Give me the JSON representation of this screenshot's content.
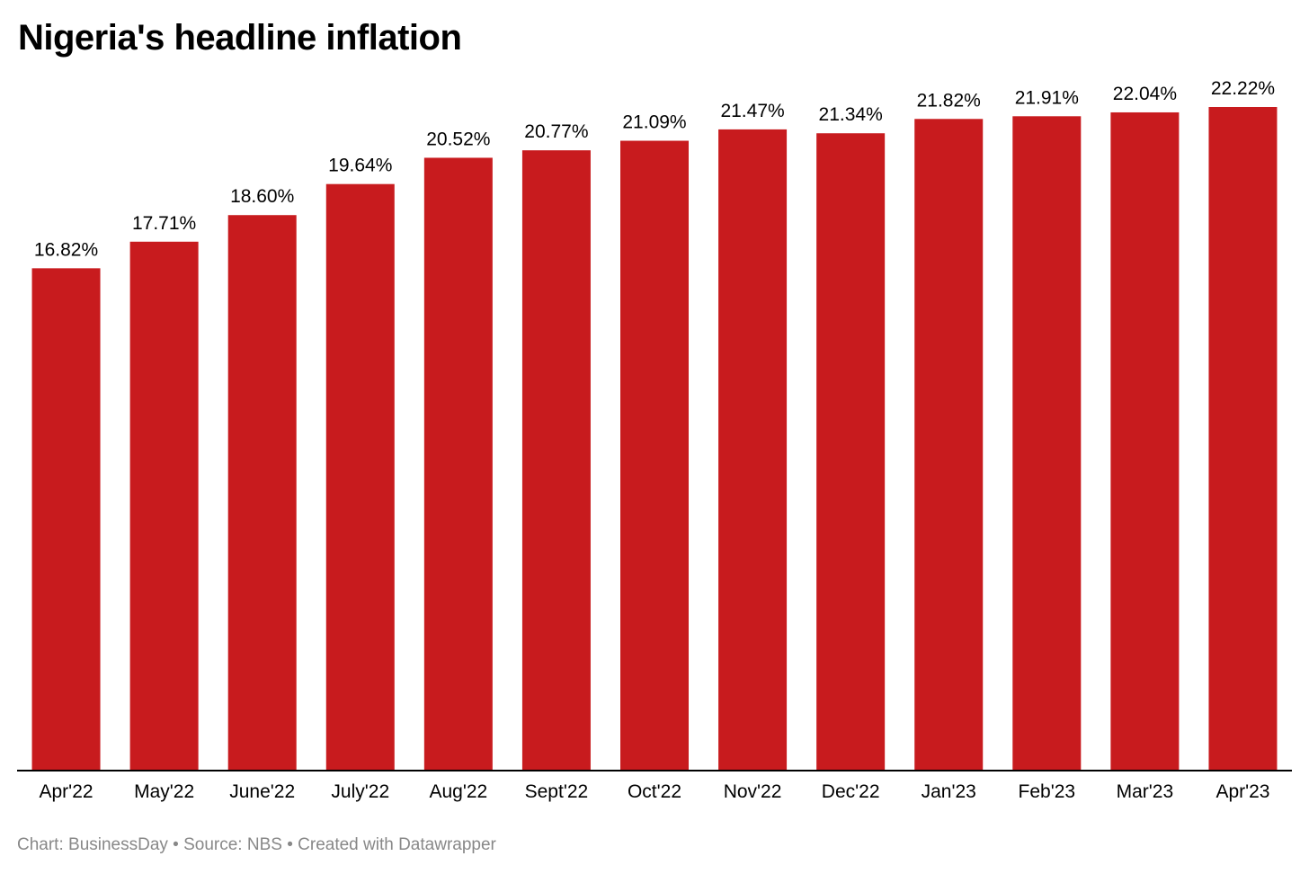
{
  "chart_data": {
    "type": "bar",
    "title": "Nigeria's headline inflation",
    "categories": [
      "Apr'22",
      "May'22",
      "June'22",
      "July'22",
      "Aug'22",
      "Sept'22",
      "Oct'22",
      "Nov'22",
      "Dec'22",
      "Jan'23",
      "Feb'23",
      "Mar'23",
      "Apr'23"
    ],
    "values": [
      16.82,
      17.71,
      18.6,
      19.64,
      20.52,
      20.77,
      21.09,
      21.47,
      21.34,
      21.82,
      21.91,
      22.04,
      22.22
    ],
    "value_labels": [
      "16.82%",
      "17.71%",
      "18.60%",
      "19.64%",
      "20.52%",
      "20.77%",
      "21.09%",
      "21.47%",
      "21.34%",
      "21.82%",
      "21.91%",
      "22.04%",
      "22.22%"
    ],
    "ylim": [
      0,
      22.22
    ],
    "grid": false,
    "bar_color": "#c81b1e"
  },
  "footer": {
    "text": "Chart: BusinessDay • Source: NBS • Created with Datawrapper"
  }
}
